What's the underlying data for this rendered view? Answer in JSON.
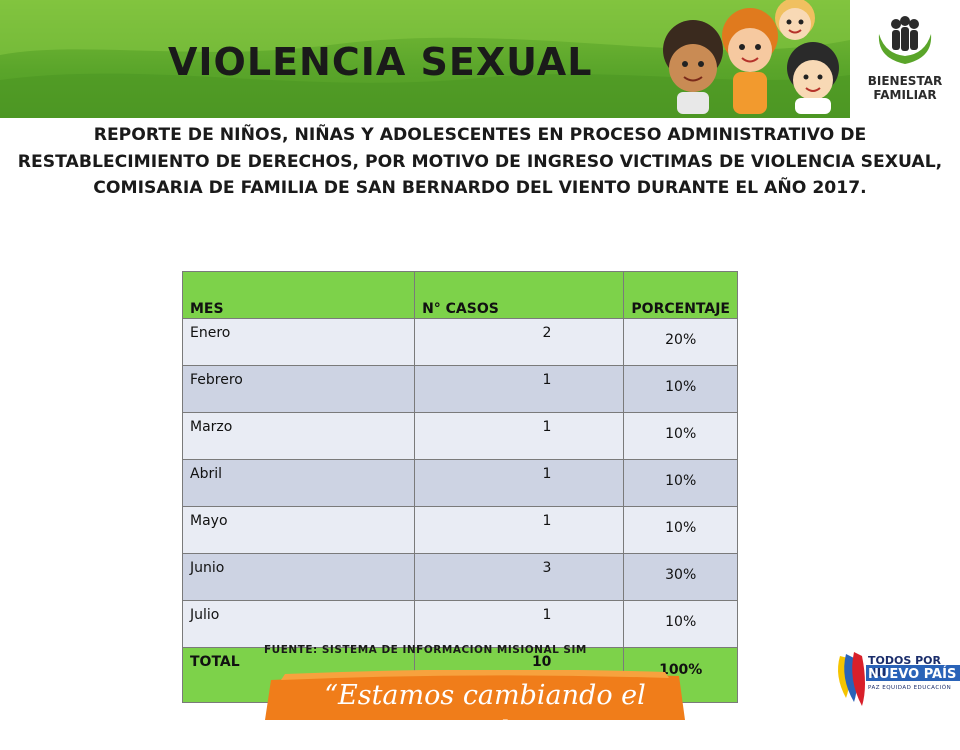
{
  "header": {
    "title": "VIOLENCIA SEXUAL",
    "logo": {
      "line1": "BIENESTAR",
      "line2": "FAMILIAR",
      "icon": "family-hands-icon"
    },
    "illustration": "children-illustration"
  },
  "subtitle": "REPORTE DE NIÑOS, NIÑAS Y ADOLESCENTES EN PROCESO ADMINISTRATIVO DE RESTABLECIMIENTO DE DERECHOS, POR MOTIVO DE INGRESO VICTIMAS DE VIOLENCIA SEXUAL, COMISARIA DE FAMILIA DE SAN BERNARDO DEL VIENTO DURANTE EL AÑO 2017.",
  "table": {
    "headers": [
      "MES",
      "N° CASOS",
      "PORCENTAJE"
    ],
    "rows": [
      [
        "Enero",
        "2",
        "20%"
      ],
      [
        "Febrero",
        "1",
        "10%"
      ],
      [
        "Marzo",
        "1",
        "10%"
      ],
      [
        "Abril",
        "1",
        "10%"
      ],
      [
        "Mayo",
        "1",
        "10%"
      ],
      [
        "Junio",
        "3",
        "30%"
      ],
      [
        "Julio",
        "1",
        "10%"
      ]
    ],
    "total": [
      "TOTAL",
      "10",
      "100%"
    ]
  },
  "source": "FUENTE: SISTEMA DE INFORMACION MISIONAL SIM",
  "slogan": "“Estamos cambiando el mundo”",
  "gov_logo": {
    "line1": "TODOS POR UN",
    "line2": "NUEVO PAÍS",
    "line3": "PAZ  EQUIDAD  EDUCACIÓN"
  },
  "colors": {
    "header_green": "#5aa52a",
    "table_header_green": "#7dd24a",
    "row_light": "#e9ecf4",
    "row_dark": "#cdd3e3",
    "slogan_orange": "#f07d1a"
  }
}
